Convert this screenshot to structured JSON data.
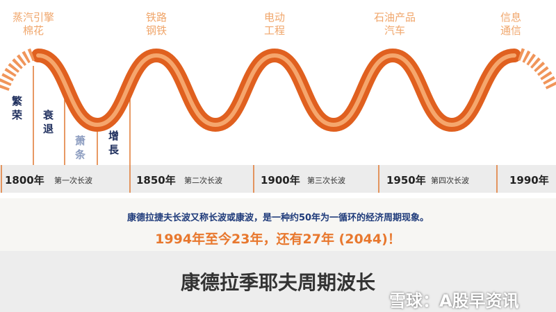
{
  "eras": [
    {
      "lines": [
        "蒸汽引擎",
        "棉花"
      ]
    },
    {
      "lines": [
        "铁路",
        "钢铁"
      ]
    },
    {
      "lines": [
        "电动",
        "工程"
      ]
    },
    {
      "lines": [
        "石油产品",
        "汽车"
      ]
    },
    {
      "lines": [
        "信息",
        "通信"
      ]
    }
  ],
  "phases": [
    "繁荣",
    "衰退",
    "萧条",
    "增長"
  ],
  "timeline": [
    {
      "year": "1800年",
      "wave": "第一次长波"
    },
    {
      "year": "1850年",
      "wave": "第二次长波"
    },
    {
      "year": "1900年",
      "wave": "第三次长波"
    },
    {
      "year": "1950年",
      "wave": "第四次长波"
    },
    {
      "year": "1990年"
    }
  ],
  "caption": {
    "definition": "康德拉捷夫长波又称长波或康波，是一种约50年为一循环的经济周期现象。",
    "note": "1994年至今23年，还有27年 (2044)！"
  },
  "title": "康德拉季耶夫周期波长",
  "watermark": "雪球：A股早资讯"
}
